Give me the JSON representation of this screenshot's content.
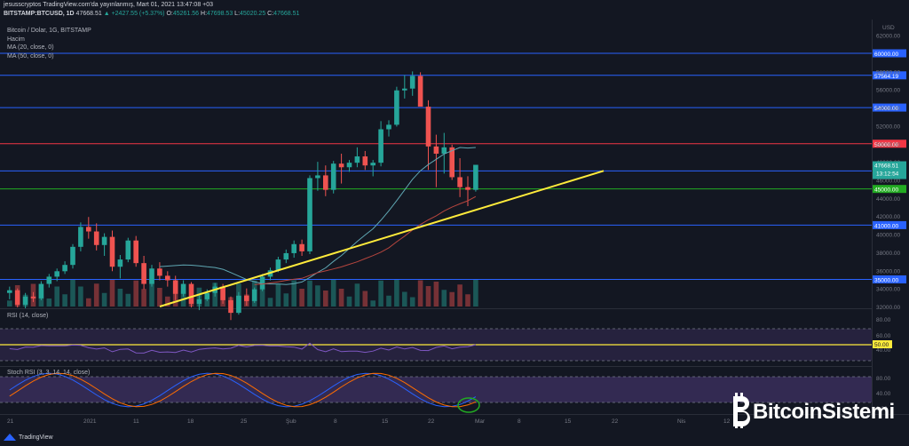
{
  "header": {
    "line1": "jesusscryptos TradingView.com'da yayınlanmış, Mart 01, 2021 13:47:08 +03",
    "symbol": "BITSTAMP:BTCUSD, 1D",
    "price": "47668.51",
    "change": "▲ +2427.55 (+5.37%)",
    "o_label": "O:",
    "o": "45261.56",
    "h_label": "H:",
    "h": "47698.53",
    "l_label": "L:",
    "l": "45020.25",
    "c_label": "C:",
    "c": "47668.51"
  },
  "legend": {
    "title": "Bitcoin / Dolar, 1G, BITSTAMP",
    "volume": "Hacim",
    "ma20": "MA (20, close, 0)",
    "ma50": "MA (50, close, 0)",
    "rsi": "RSI (14, close)",
    "stoch": "Stoch RSI (3, 3, 14, 14, close)"
  },
  "price_axis": {
    "currency": "USD",
    "ticks": [
      "62000.00",
      "58000.00",
      "56000.00",
      "54000.00",
      "52000.00",
      "50000.00",
      "48000.00",
      "46000.00",
      "44000.00",
      "42000.00",
      "40000.00",
      "38000.00",
      "36000.00",
      "34000.00",
      "32000.00"
    ],
    "current_price": "47668.51",
    "countdown": "13:12:54",
    "pane_ticks": [
      "80.00",
      "60.00",
      "40.00",
      "80.00",
      "40.00",
      "0.00"
    ]
  },
  "levels": [
    {
      "value": "60000.00",
      "color": "#2962ff"
    },
    {
      "value": "57564.19",
      "color": "#2962ff"
    },
    {
      "value": "54000.00",
      "color": "#2962ff"
    },
    {
      "value": "50000.00",
      "color": "#f23645"
    },
    {
      "value": "47000.00",
      "color": "#2962ff"
    },
    {
      "value": "45000.00",
      "color": "#22ab22"
    },
    {
      "value": "41000.00",
      "color": "#2962ff"
    },
    {
      "value": "35000.00",
      "color": "#2962ff"
    }
  ],
  "rsi_level": "50.00",
  "time_axis": [
    "21",
    "2021",
    "11",
    "18",
    "25",
    "Şub",
    "8",
    "15",
    "22",
    "Mar",
    "8",
    "15",
    "22",
    "Nis",
    "12"
  ],
  "watermark": {
    "brand": "BitcoinSistemi"
  },
  "footer": {
    "tradingview": "TradingView"
  },
  "colors": {
    "up": "#26a69a",
    "down": "#ef5350",
    "trendline": "#ffeb3b",
    "ma20": "#5fa7b3",
    "ma50": "#b5453e",
    "rsi": "#7e57c2"
  }
}
